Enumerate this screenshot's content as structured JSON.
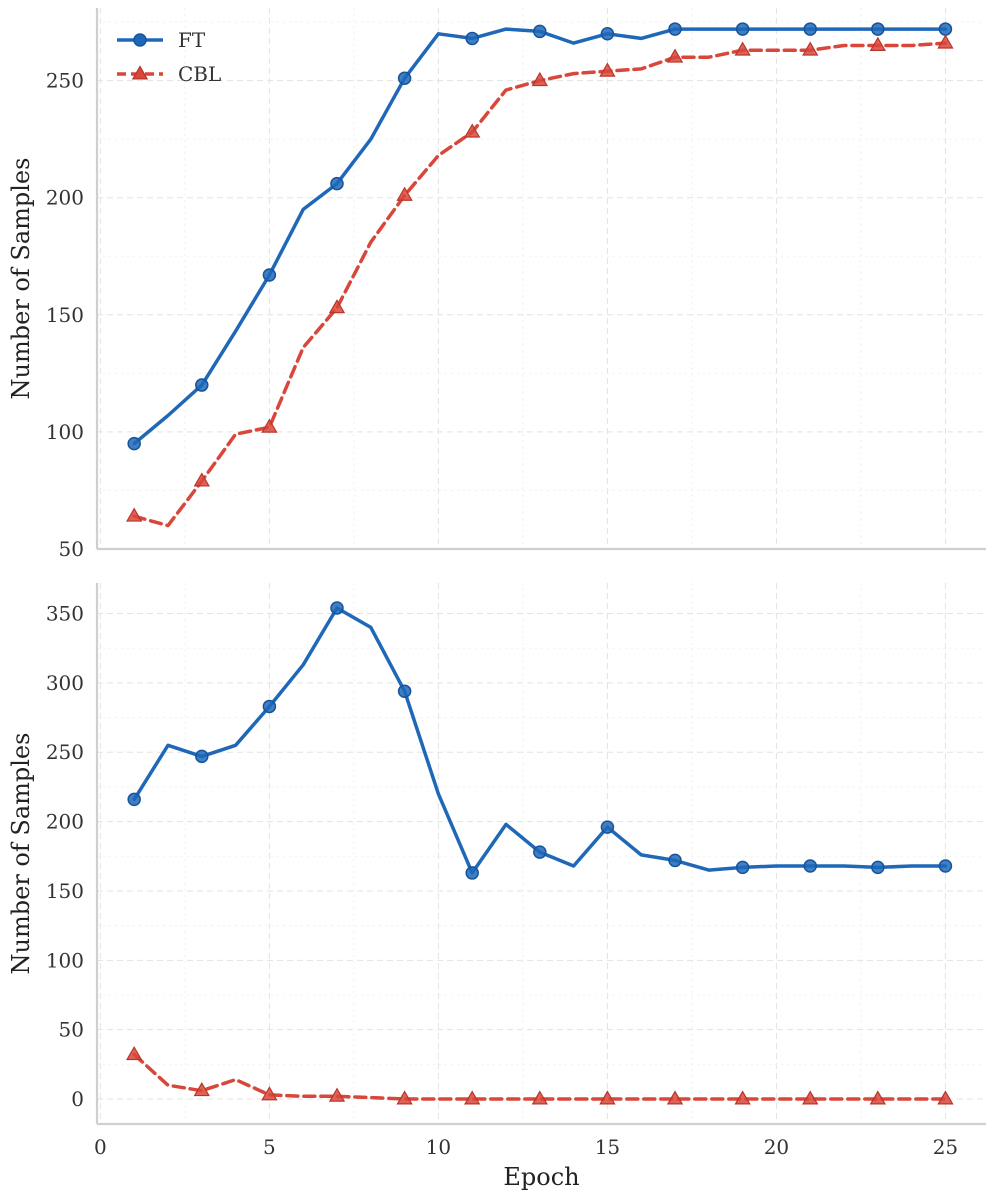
{
  "chart_data": [
    {
      "type": "line",
      "ylabel": "Number of Samples",
      "xlim": [
        -0.1,
        26.2
      ],
      "ylim": [
        50,
        281
      ],
      "xticks": [
        0,
        5,
        10,
        15,
        20,
        25
      ],
      "yticks": [
        50,
        100,
        150,
        200,
        250
      ],
      "grid": true,
      "legend": "top-left",
      "series": [
        {
          "name": "FT",
          "color": "#1f68b8",
          "style": "solid",
          "marker": "circle",
          "x": [
            1,
            2,
            3,
            4,
            5,
            6,
            7,
            8,
            9,
            10,
            11,
            12,
            13,
            14,
            15,
            16,
            17,
            18,
            19,
            20,
            21,
            22,
            23,
            24,
            25
          ],
          "y": [
            95,
            107,
            120,
            143,
            167,
            195,
            206,
            225,
            251,
            270,
            268,
            272,
            271,
            266,
            270,
            268,
            272,
            272,
            272,
            272,
            272,
            272,
            272,
            272,
            272
          ]
        },
        {
          "name": "CBL",
          "color": "#d9463a",
          "style": "dashed",
          "marker": "triangle",
          "x": [
            1,
            2,
            3,
            4,
            5,
            6,
            7,
            8,
            9,
            10,
            11,
            12,
            13,
            14,
            15,
            16,
            17,
            18,
            19,
            20,
            21,
            22,
            23,
            24,
            25
          ],
          "y": [
            64,
            60,
            79,
            99,
            102,
            136,
            153,
            181,
            201,
            218,
            228,
            246,
            250,
            253,
            254,
            255,
            260,
            260,
            263,
            263,
            263,
            265,
            265,
            265,
            266
          ]
        }
      ]
    },
    {
      "type": "line",
      "ylabel": "Number of Samples",
      "xlabel": "Epoch",
      "xlim": [
        -0.1,
        26.2
      ],
      "ylim": [
        -18,
        372
      ],
      "xticks": [
        0,
        5,
        10,
        15,
        20,
        25
      ],
      "yticks": [
        0,
        50,
        100,
        150,
        200,
        250,
        300,
        350
      ],
      "grid": true,
      "series": [
        {
          "name": "FT",
          "color": "#1f68b8",
          "style": "solid",
          "marker": "circle",
          "x": [
            1,
            2,
            3,
            4,
            5,
            6,
            7,
            8,
            9,
            10,
            11,
            12,
            13,
            14,
            15,
            16,
            17,
            18,
            19,
            20,
            21,
            22,
            23,
            24,
            25
          ],
          "y": [
            216,
            255,
            247,
            255,
            283,
            313,
            354,
            340,
            294,
            220,
            163,
            198,
            178,
            168,
            196,
            176,
            172,
            165,
            167,
            168,
            168,
            168,
            167,
            168,
            168
          ]
        },
        {
          "name": "CBL",
          "color": "#d9463a",
          "style": "dashed",
          "marker": "triangle",
          "x": [
            1,
            2,
            3,
            4,
            5,
            6,
            7,
            8,
            9,
            10,
            11,
            12,
            13,
            14,
            15,
            16,
            17,
            18,
            19,
            20,
            21,
            22,
            23,
            24,
            25
          ],
          "y": [
            32,
            10,
            6,
            14,
            3,
            2,
            2,
            1,
            0,
            0,
            0,
            0,
            0,
            0,
            0,
            0,
            0,
            0,
            0,
            0,
            0,
            0,
            0,
            0,
            0
          ]
        }
      ]
    }
  ]
}
